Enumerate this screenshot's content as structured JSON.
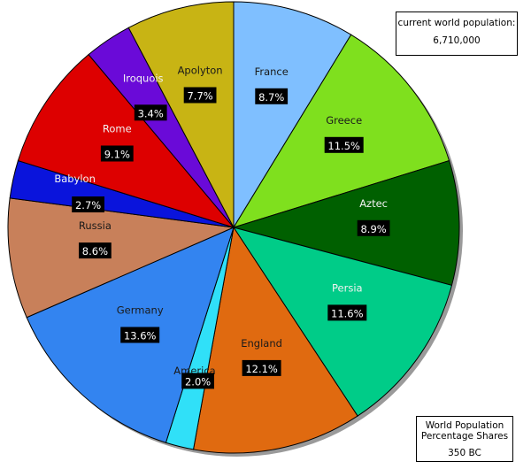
{
  "chart_data": {
    "type": "pie",
    "slices": [
      {
        "label": "France",
        "value": 8.7,
        "pct_label": "8.7%",
        "color": "#7fbfff",
        "label_color": "#1a1a1a"
      },
      {
        "label": "Greece",
        "value": 11.5,
        "pct_label": "11.5%",
        "color": "#7fe01e",
        "label_color": "#1a1a1a"
      },
      {
        "label": "Aztec",
        "value": 8.9,
        "pct_label": "8.9%",
        "color": "#006000",
        "label_color": "#f2f2f2"
      },
      {
        "label": "Persia",
        "value": 11.6,
        "pct_label": "11.6%",
        "color": "#00cc88",
        "label_color": "#f2f2f2"
      },
      {
        "label": "England",
        "value": 12.1,
        "pct_label": "12.1%",
        "color": "#e06a10",
        "label_color": "#1a1a1a"
      },
      {
        "label": "America",
        "value": 2.0,
        "pct_label": "2.0%",
        "color": "#30e0f8",
        "label_color": "#1a1a1a"
      },
      {
        "label": "Germany",
        "value": 13.6,
        "pct_label": "13.6%",
        "color": "#3384f0",
        "label_color": "#1a1a1a"
      },
      {
        "label": "Russia",
        "value": 8.6,
        "pct_label": "8.6%",
        "color": "#c8805a",
        "label_color": "#1a1a1a"
      },
      {
        "label": "Babylon",
        "value": 2.7,
        "pct_label": "2.7%",
        "color": "#0a14dc",
        "label_color": "#f2f2f2"
      },
      {
        "label": "Rome",
        "value": 9.1,
        "pct_label": "9.1%",
        "color": "#dd0000",
        "label_color": "#f2f2f2"
      },
      {
        "label": "Iroquois",
        "value": 3.4,
        "pct_label": "3.4%",
        "color": "#6a0ad8",
        "label_color": "#f2f2f2"
      },
      {
        "label": "Apolyton",
        "value": 7.7,
        "pct_label": "7.7%",
        "color": "#c8b414",
        "label_color": "#1a1a1a"
      }
    ],
    "population_label": "current world  population:",
    "population_value": "6,710,000",
    "title_line1": "World Population",
    "title_line2": "Percentage Shares",
    "title_line3": "350 BC"
  }
}
